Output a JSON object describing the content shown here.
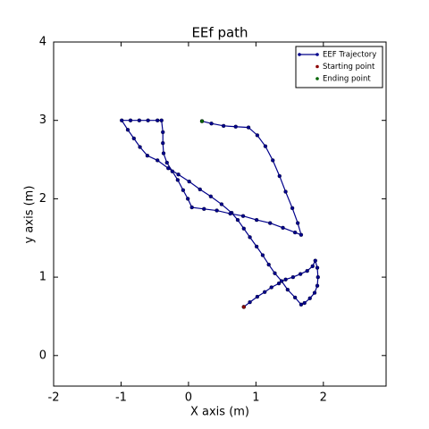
{
  "chart_data": {
    "type": "line",
    "title": "EEf path",
    "xlabel": "X axis (m)",
    "ylabel": "y axis (m)",
    "xlim": [
      -2,
      2.93
    ],
    "ylim": [
      -0.39,
      4
    ],
    "xticks": [
      -2,
      -1,
      0,
      1,
      2
    ],
    "yticks": [
      0,
      1,
      2,
      3,
      4
    ],
    "grid": false,
    "legend": "upper right",
    "series": [
      {
        "name": "EEF Trajectory",
        "color": "#00008b",
        "mode": "line+markers",
        "x": [
          0.82,
          0.91,
          1.02,
          1.13,
          1.23,
          1.34,
          1.44,
          1.55,
          1.66,
          1.76,
          1.84,
          1.88,
          1.91,
          1.92,
          1.91,
          1.87,
          1.8,
          1.72,
          1.67,
          1.58,
          1.47,
          1.38,
          1.28,
          1.19,
          1.1,
          1.01,
          0.91,
          0.82,
          0.73,
          0.64,
          0.49,
          0.33,
          0.17,
          0.01,
          -0.15,
          -0.3,
          -0.46,
          -0.61,
          -0.72,
          -0.81,
          -0.9,
          -0.99,
          -0.86,
          -0.73,
          -0.6,
          -0.46,
          -0.4,
          -0.38,
          -0.38,
          -0.37,
          -0.32,
          -0.24,
          -0.16,
          -0.08,
          -0.01,
          0.05,
          0.23,
          0.42,
          0.62,
          0.81,
          1.01,
          1.21,
          1.4,
          1.58,
          1.67,
          1.62,
          1.54,
          1.44,
          1.35,
          1.25,
          1.14,
          1.02,
          0.89,
          0.7,
          0.52,
          0.34,
          0.2
        ],
        "values": [
          0.62,
          0.68,
          0.75,
          0.81,
          0.87,
          0.92,
          0.97,
          1.0,
          1.04,
          1.08,
          1.14,
          1.21,
          1.12,
          1.0,
          0.89,
          0.8,
          0.73,
          0.67,
          0.65,
          0.74,
          0.84,
          0.95,
          1.05,
          1.16,
          1.28,
          1.39,
          1.51,
          1.62,
          1.73,
          1.82,
          1.93,
          2.03,
          2.12,
          2.22,
          2.31,
          2.39,
          2.49,
          2.55,
          2.66,
          2.77,
          2.88,
          3.0,
          3.0,
          3.0,
          3.0,
          3.0,
          3.0,
          2.85,
          2.71,
          2.58,
          2.46,
          2.35,
          2.24,
          2.11,
          2.0,
          1.89,
          1.87,
          1.85,
          1.81,
          1.78,
          1.73,
          1.69,
          1.63,
          1.57,
          1.54,
          1.69,
          1.88,
          2.09,
          2.29,
          2.49,
          2.67,
          2.81,
          2.91,
          2.92,
          2.93,
          2.96,
          2.99
        ]
      },
      {
        "name": "Starting point",
        "color": "#8b0000",
        "mode": "markers",
        "x": [
          0.82
        ],
        "values": [
          0.62
        ]
      },
      {
        "name": "Ending point",
        "color": "#006400",
        "mode": "markers",
        "x": [
          0.2
        ],
        "values": [
          2.99
        ]
      }
    ]
  }
}
